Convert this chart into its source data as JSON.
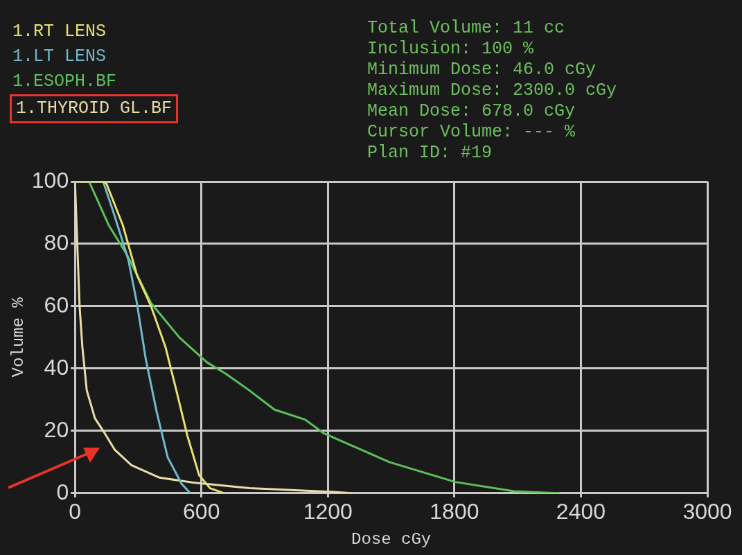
{
  "chart_data": {
    "type": "line",
    "xlabel": "Dose cGy",
    "ylabel": "Volume %",
    "annotations": [
      "Total Volume: 11 cc",
      "Inclusion: 100 %",
      "Minimum Dose: 46.0 cGy",
      "Maximum Dose: 2300.0 cGy",
      "Mean Dose: 678.0 cGy",
      "Cursor Volume: --- %",
      "Plan ID: #19"
    ],
    "series": [
      {
        "name": "1.RT LENS",
        "color": "#e6e070",
        "x": [
          0,
          130,
          149,
          227,
          294,
          361,
          429,
          481,
          533,
          589,
          641,
          708
        ],
        "values": [
          100,
          100,
          99.4,
          86,
          70,
          60,
          47,
          33,
          18.5,
          5.8,
          1.6,
          0
        ]
      },
      {
        "name": "1.LT LENS",
        "color": "#70b8cc",
        "x": [
          0,
          95,
          134,
          188,
          253,
          294,
          336,
          388,
          440,
          506,
          547
        ],
        "values": [
          100,
          100,
          100,
          89,
          75,
          61,
          43,
          26,
          11.5,
          3,
          0
        ]
      },
      {
        "name": "1.ESOPH.BF",
        "color": "#5cc05a",
        "x": [
          0,
          67,
          160,
          246,
          361,
          495,
          626,
          716,
          827,
          947,
          1092,
          1181,
          1491,
          1804,
          2083,
          2300
        ],
        "values": [
          100,
          100,
          86,
          76.6,
          61,
          50,
          42,
          38.3,
          33,
          26.8,
          23.6,
          19.2,
          10,
          3.6,
          0.6,
          0
        ]
      },
      {
        "name": "1.THYROID GL.BF",
        "color": "#e8dca8",
        "x": [
          0,
          11,
          22,
          35,
          56,
          95,
          134,
          188,
          268,
          401,
          561,
          827,
          1226,
          1312
        ],
        "values": [
          100,
          80,
          60,
          47,
          33,
          24,
          20,
          14,
          9,
          5,
          3.4,
          1.6,
          0.4,
          0
        ]
      }
    ],
    "xlim": [
      0,
      3000
    ],
    "xticks": [
      0,
      600,
      1200,
      1800,
      2400,
      3000
    ],
    "ylim": [
      0,
      100
    ],
    "yticks": [
      0,
      20,
      40,
      60,
      80,
      100
    ],
    "grid": true,
    "legend": "top left",
    "marker": "none",
    "line_style": "solid"
  }
}
